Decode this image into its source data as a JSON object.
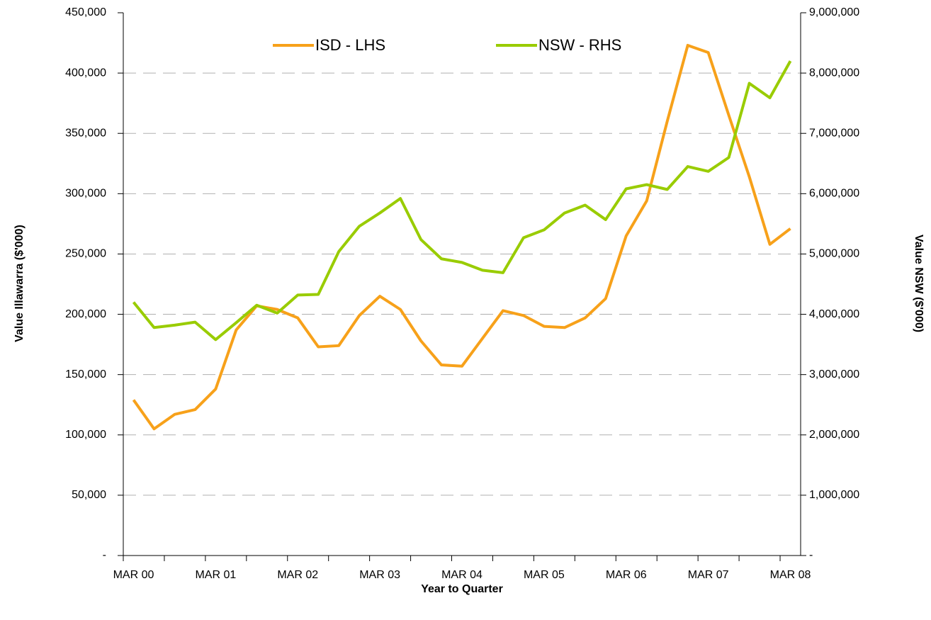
{
  "chart_data": {
    "type": "line",
    "xlabel": "Year to Quarter",
    "ylabel": "Value Illawarra ($'000)",
    "y2label": "Value NSW ($'000)",
    "categories": [
      "MAR 00",
      null,
      null,
      null,
      "MAR 01",
      null,
      null,
      null,
      "MAR 02",
      null,
      null,
      null,
      "MAR 03",
      null,
      null,
      null,
      "MAR 04",
      null,
      null,
      null,
      "MAR 05",
      null,
      null,
      null,
      "MAR 06",
      null,
      null,
      null,
      "MAR 07",
      null,
      null,
      null,
      "MAR 08"
    ],
    "series": [
      {
        "name": "ISD - LHS",
        "color": "#f7a11a",
        "axis": "y",
        "values": [
          129000,
          105000,
          117000,
          121000,
          138000,
          187000,
          207000,
          204000,
          197000,
          173000,
          174000,
          199000,
          215000,
          204000,
          178000,
          158000,
          157000,
          180000,
          203000,
          199000,
          190000,
          189000,
          197000,
          213000,
          265000,
          294000,
          360000,
          423000,
          417000,
          365000,
          314000,
          258000,
          271000
        ]
      },
      {
        "name": "NSW - RHS",
        "color": "#99cc00",
        "axis": "y2",
        "values": [
          4200000,
          3780000,
          3820000,
          3870000,
          3580000,
          3860000,
          4150000,
          4020000,
          4320000,
          4330000,
          5040000,
          5460000,
          5680000,
          5920000,
          5240000,
          4920000,
          4860000,
          4730000,
          4690000,
          5270000,
          5400000,
          5680000,
          5810000,
          5570000,
          6080000,
          6150000,
          6070000,
          6450000,
          6370000,
          6600000,
          7830000,
          7590000,
          8200000
        ]
      }
    ],
    "ylim": [
      0,
      450000
    ],
    "yticks": [
      {
        "value": 0,
        "label": "-"
      },
      {
        "value": 50000,
        "label": "50,000"
      },
      {
        "value": 100000,
        "label": "100,000"
      },
      {
        "value": 150000,
        "label": "150,000"
      },
      {
        "value": 200000,
        "label": "200,000"
      },
      {
        "value": 250000,
        "label": "250,000"
      },
      {
        "value": 300000,
        "label": "300,000"
      },
      {
        "value": 350000,
        "label": "350,000"
      },
      {
        "value": 400000,
        "label": "400,000"
      },
      {
        "value": 450000,
        "label": "450,000"
      }
    ],
    "y2lim": [
      0,
      9000000
    ],
    "y2ticks": [
      {
        "value": 0,
        "label": "-"
      },
      {
        "value": 1000000,
        "label": "1,000,000"
      },
      {
        "value": 2000000,
        "label": "2,000,000"
      },
      {
        "value": 3000000,
        "label": "3,000,000"
      },
      {
        "value": 4000000,
        "label": "4,000,000"
      },
      {
        "value": 5000000,
        "label": "5,000,000"
      },
      {
        "value": 6000000,
        "label": "6,000,000"
      },
      {
        "value": 7000000,
        "label": "7,000,000"
      },
      {
        "value": 8000000,
        "label": "8,000,000"
      },
      {
        "value": 9000000,
        "label": "9,000,000"
      }
    ],
    "grid": true,
    "legend": "top"
  }
}
